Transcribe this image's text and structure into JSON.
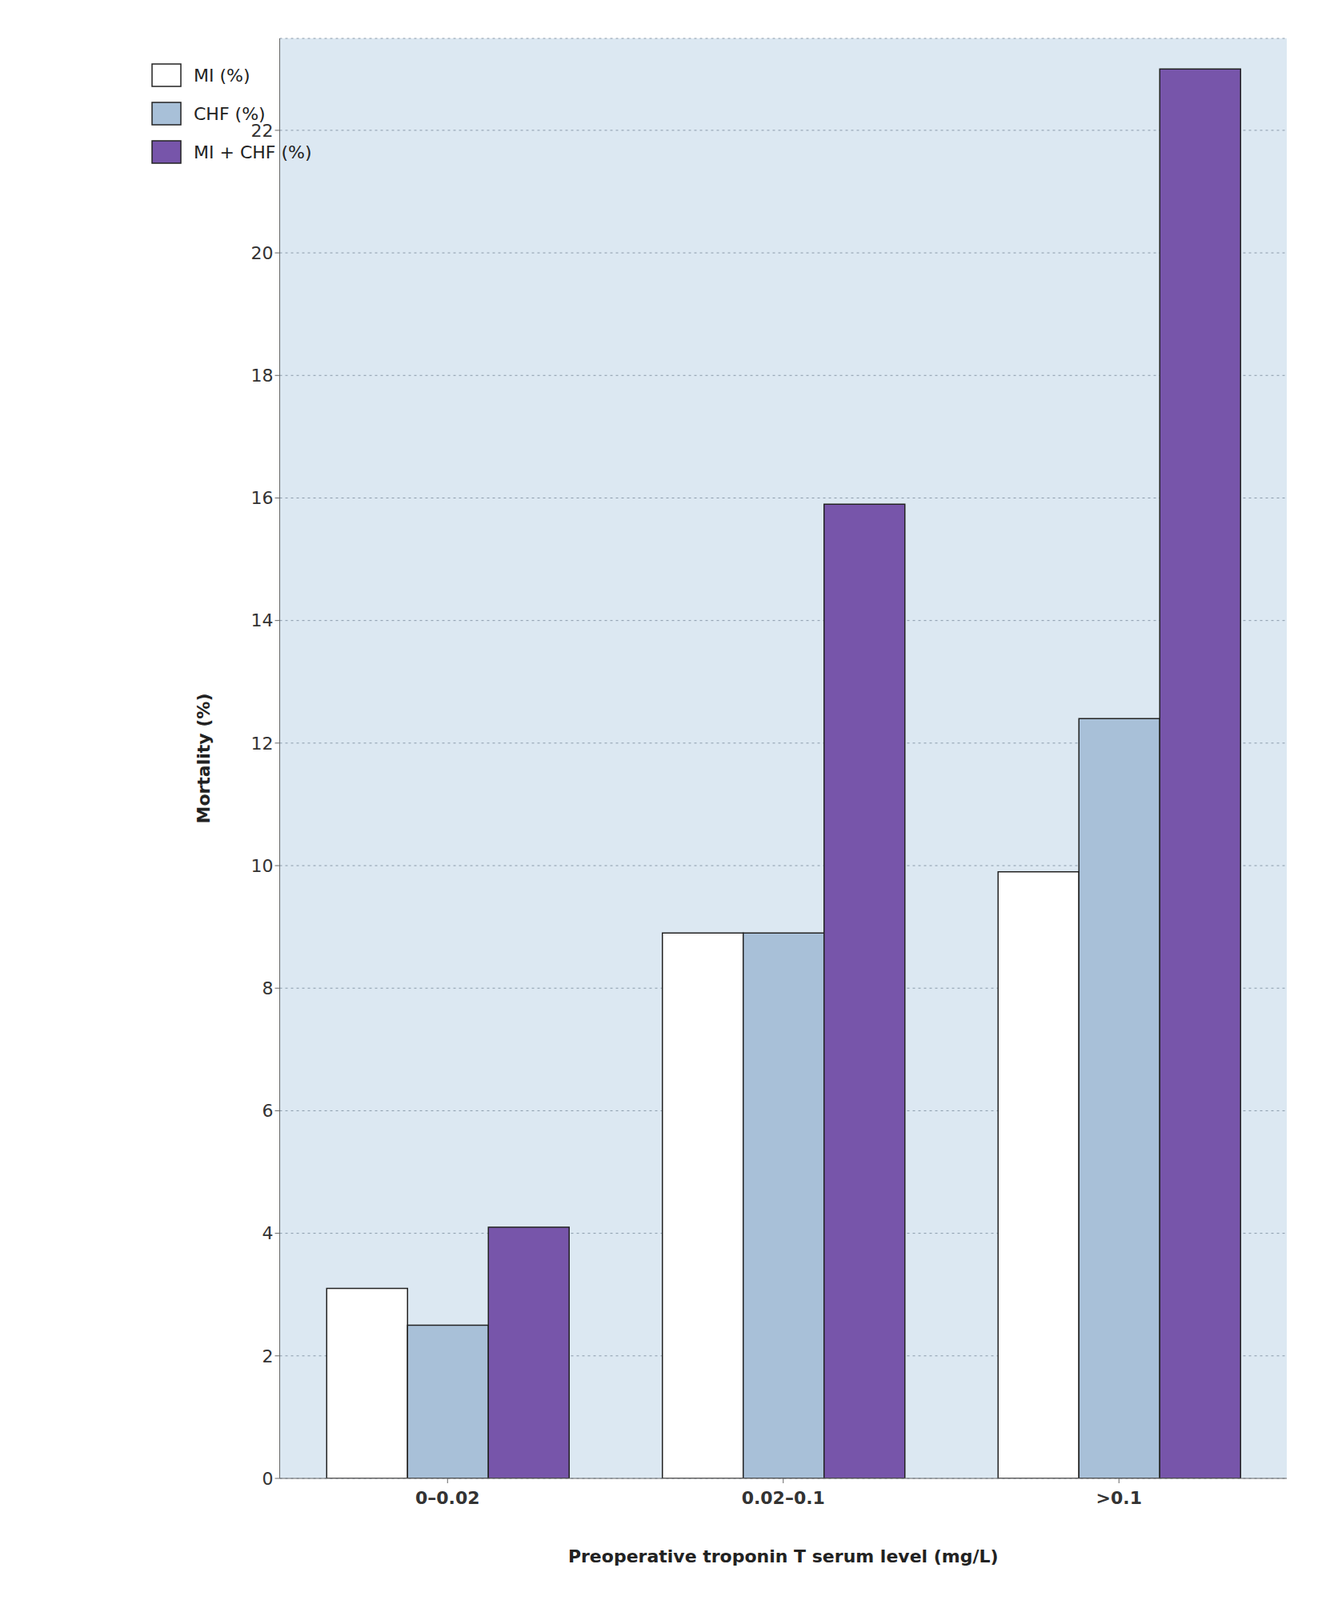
{
  "chart_data": {
    "type": "bar",
    "categories": [
      "0–0.02",
      "0.02–0.1",
      ">0.1"
    ],
    "series": [
      {
        "name": "MI (%)",
        "color": "#ffffff",
        "values": [
          3.1,
          8.9,
          9.9
        ]
      },
      {
        "name": "CHF (%)",
        "color": "#a8c0d8",
        "values": [
          2.5,
          8.9,
          12.4
        ]
      },
      {
        "name": "MI + CHF (%)",
        "color": "#7755aa",
        "values": [
          4.1,
          15.9,
          23.0
        ]
      }
    ],
    "xlabel": "Preoperative troponin T serum level (mg/L)",
    "ylabel": "Mortality (%)",
    "ylim": [
      0,
      23.5
    ],
    "yticks": [
      0,
      2,
      4,
      6,
      8,
      10,
      12,
      14,
      16,
      18,
      20,
      22
    ],
    "grid": true,
    "legend": "upper left"
  }
}
